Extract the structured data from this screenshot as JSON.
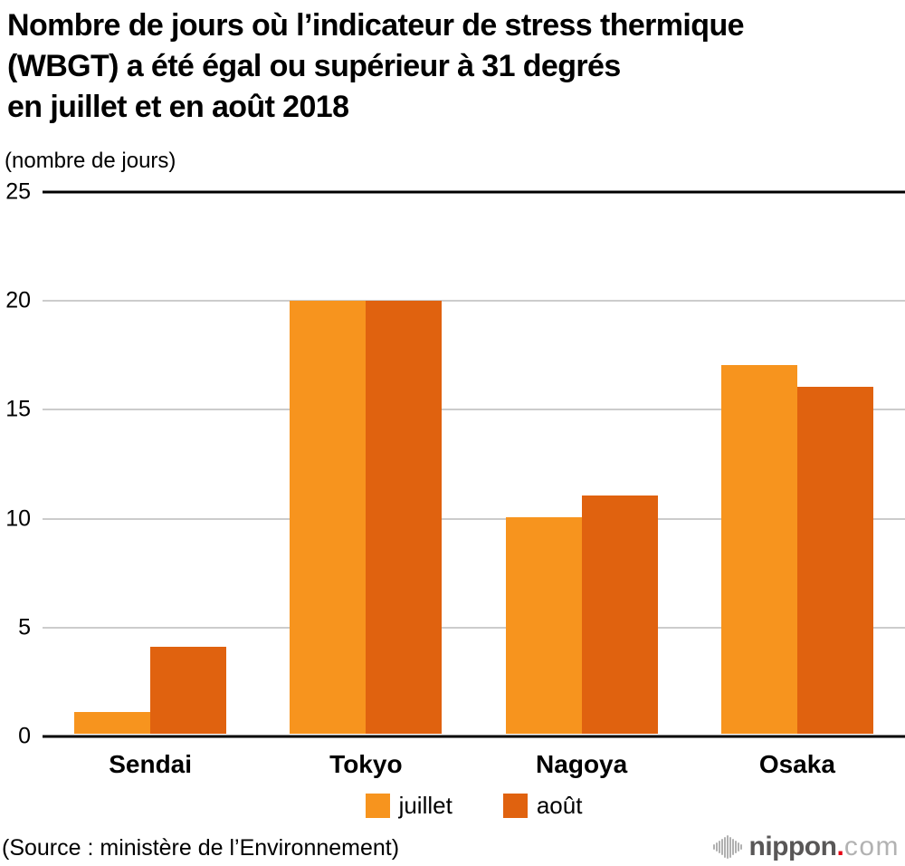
{
  "header": {
    "title_lines": [
      "Nombre de jours où l’indicateur de stress thermique",
      "(WBGT) a été égal ou supérieur à 31 degrés",
      "en juillet et en août 2018"
    ],
    "unit_label": "(nombre de jours)"
  },
  "footer": {
    "source": "(Source : ministère de l’Environnement)",
    "logo": {
      "brand": "nippon",
      "dot": ".",
      "tld": "com"
    }
  },
  "colors": {
    "juillet": "#F7941E",
    "aout": "#E0620F",
    "gridline": "#cccccc",
    "axis": "#000000",
    "logo_gray": "#595757",
    "logo_light": "#b2b2b2",
    "logo_red": "#e60012"
  },
  "chart_data": {
    "type": "bar",
    "title": "Nombre de jours où l’indicateur de stress thermique (WBGT) a été égal ou supérieur à 31 degrés en juillet et en août 2018",
    "ylabel": "(nombre de jours)",
    "categories": [
      "Sendai",
      "Tokyo",
      "Nagoya",
      "Osaka"
    ],
    "series": [
      {
        "name": "juillet",
        "color": "#F7941E",
        "values": [
          1,
          20,
          10,
          17
        ]
      },
      {
        "name": "août",
        "color": "#E0620F",
        "values": [
          4,
          20,
          11,
          16
        ]
      }
    ],
    "ylim": [
      0,
      25
    ],
    "yticks": [
      25,
      20,
      15,
      10,
      5,
      0
    ],
    "grid": true,
    "legend_position": "bottom"
  }
}
